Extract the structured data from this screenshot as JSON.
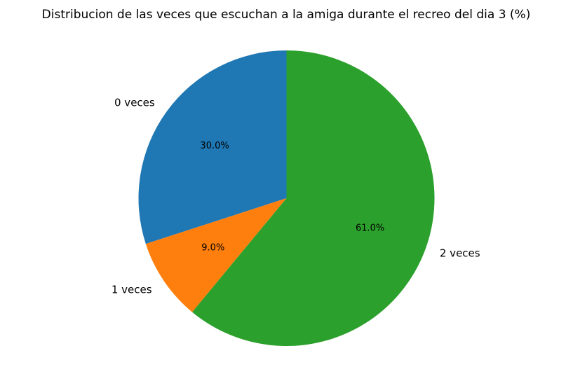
{
  "chart_data": {
    "type": "pie",
    "title": "Distribucion de las veces que escuchan a la amiga durante el recreo del dia 3 (%)",
    "categories": [
      "0 veces",
      "1 veces",
      "2 veces"
    ],
    "values": [
      30.0,
      9.0,
      61.0
    ],
    "value_labels": [
      "30.0%",
      "9.0%",
      "61.0%"
    ],
    "colors": [
      "#1f77b4",
      "#ff7f0e",
      "#2ca02c"
    ],
    "start_angle": "top",
    "direction": "counterclockwise",
    "legend": "none"
  }
}
